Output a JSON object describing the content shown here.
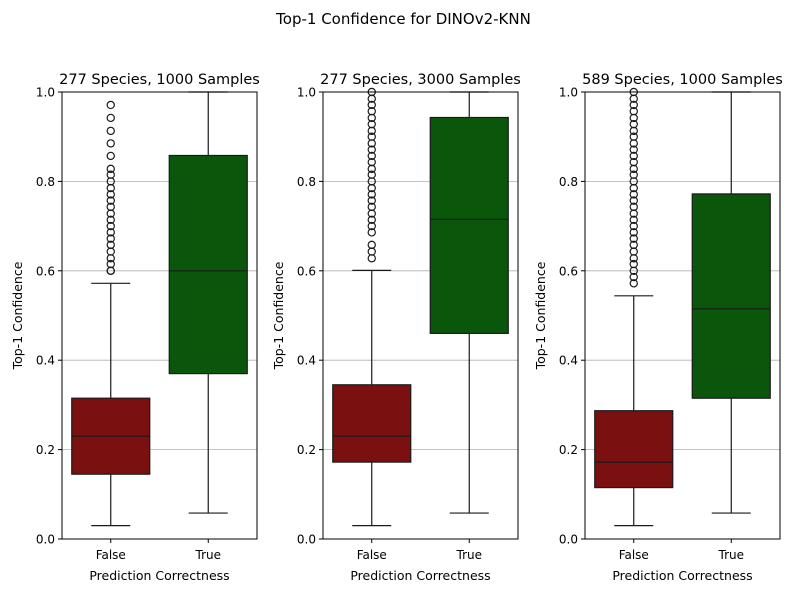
{
  "figure": {
    "title": "Top-1 Confidence for DINOv2-KNN"
  },
  "colors": {
    "false_box": "#7b1010",
    "true_box": "#0a560a",
    "grid": "#b0b0b0",
    "edge": "#1a1a1a"
  },
  "chart_data": [
    {
      "type": "box",
      "title": "277 Species, 1000 Samples",
      "xlabel": "Prediction Correctness",
      "ylabel": "Top-1 Confidence",
      "ylim": [
        0,
        1.0
      ],
      "yticks": [
        "0.0",
        "0.2",
        "0.4",
        "0.6",
        "0.8",
        "1.0"
      ],
      "categories": [
        "False",
        "True"
      ],
      "grid": "y",
      "boxes": [
        {
          "category": "False",
          "whisker_low": 0.03,
          "q1": 0.145,
          "median": 0.23,
          "q3": 0.315,
          "whisker_high": 0.572,
          "outliers": [
            0.6,
            0.6,
            0.615,
            0.628,
            0.643,
            0.658,
            0.672,
            0.686,
            0.7,
            0.714,
            0.728,
            0.743,
            0.757,
            0.771,
            0.785,
            0.8,
            0.815,
            0.828,
            0.857,
            0.885,
            0.913,
            0.942,
            0.971
          ]
        },
        {
          "category": "True",
          "whisker_low": 0.058,
          "q1": 0.37,
          "median": 0.6,
          "q3": 0.858,
          "whisker_high": 1.0,
          "outliers": []
        }
      ]
    },
    {
      "type": "box",
      "title": "277 Species, 3000 Samples",
      "xlabel": "Prediction Correctness",
      "ylabel": "Top-1 Confidence",
      "ylim": [
        0,
        1.0
      ],
      "yticks": [
        "0.0",
        "0.2",
        "0.4",
        "0.6",
        "0.8",
        "1.0"
      ],
      "categories": [
        "False",
        "True"
      ],
      "grid": "y",
      "boxes": [
        {
          "category": "False",
          "whisker_low": 0.03,
          "q1": 0.172,
          "median": 0.23,
          "q3": 0.345,
          "whisker_high": 0.601,
          "outliers": [
            0.628,
            0.643,
            0.658,
            0.686,
            0.7,
            0.714,
            0.728,
            0.743,
            0.757,
            0.771,
            0.785,
            0.8,
            0.815,
            0.828,
            0.843,
            0.857,
            0.871,
            0.885,
            0.9,
            0.913,
            0.928,
            0.942,
            0.957,
            0.971,
            0.985,
            1.0
          ]
        },
        {
          "category": "True",
          "whisker_low": 0.058,
          "q1": 0.46,
          "median": 0.715,
          "q3": 0.943,
          "whisker_high": 1.0,
          "outliers": []
        }
      ]
    },
    {
      "type": "box",
      "title": "589 Species, 1000 Samples",
      "xlabel": "Prediction Correctness",
      "ylabel": "Top-1 Confidence",
      "ylim": [
        0,
        1.0
      ],
      "yticks": [
        "0.0",
        "0.2",
        "0.4",
        "0.6",
        "0.8",
        "1.0"
      ],
      "categories": [
        "False",
        "True"
      ],
      "grid": "y",
      "boxes": [
        {
          "category": "False",
          "whisker_low": 0.03,
          "q1": 0.115,
          "median": 0.172,
          "q3": 0.287,
          "whisker_high": 0.544,
          "outliers": [
            0.572,
            0.586,
            0.6,
            0.615,
            0.628,
            0.643,
            0.658,
            0.672,
            0.686,
            0.7,
            0.714,
            0.728,
            0.743,
            0.757,
            0.771,
            0.785,
            0.8,
            0.815,
            0.828,
            0.843,
            0.857,
            0.871,
            0.885,
            0.9,
            0.913,
            0.928,
            0.942,
            0.957,
            0.971,
            0.985,
            1.0
          ]
        },
        {
          "category": "True",
          "whisker_low": 0.058,
          "q1": 0.315,
          "median": 0.515,
          "q3": 0.772,
          "whisker_high": 1.0,
          "outliers": []
        }
      ]
    }
  ]
}
